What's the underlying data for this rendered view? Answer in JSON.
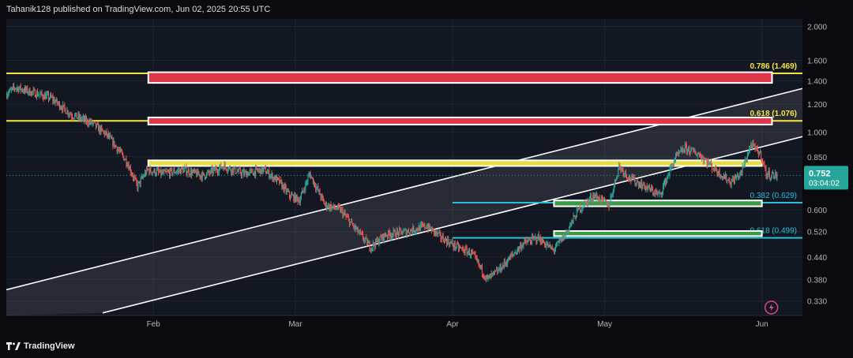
{
  "header": {
    "publisher_text": "Tahanik128 published on TradingView.com, Jun 02, 2025 20:55 UTC"
  },
  "footer": {
    "brand_label": "TradingView"
  },
  "colors": {
    "background": "#131722",
    "up": "#26a69a",
    "down": "#ef5350",
    "fib_yellow": "#f4e742",
    "fib_cyan": "#22c1d6",
    "zone_red": "#e0384b",
    "zone_yellow": "#e8dc42",
    "zone_green": "#3a9b47",
    "channel": "#ffffff",
    "price_tag": "#26a69a"
  },
  "chart_data": {
    "type": "candlestick",
    "title": "",
    "xlabel": "",
    "ylabel": "",
    "y_scale": "log",
    "ylim": [
      0.3,
      2.1
    ],
    "x_range": [
      "2025-01-03",
      "2025-06-09"
    ],
    "x_tick_labels": [
      {
        "label": "Feb",
        "date": "2025-02-01"
      },
      {
        "label": "Mar",
        "date": "2025-03-01"
      },
      {
        "label": "Apr",
        "date": "2025-04-01"
      },
      {
        "label": "May",
        "date": "2025-05-01"
      },
      {
        "label": "Jun",
        "date": "2025-06-01"
      }
    ],
    "y_tick_labels": [
      "2.000",
      "1.600",
      "1.400",
      "1.200",
      "1.000",
      "0.850",
      "0.600",
      "0.520",
      "0.440",
      "0.380",
      "0.330"
    ],
    "y_ticks": [
      2.0,
      1.6,
      1.4,
      1.2,
      1.0,
      0.85,
      0.6,
      0.52,
      0.44,
      0.38,
      0.33
    ],
    "last_price": {
      "value": 0.752,
      "label": "0.752",
      "countdown": "03:04:02"
    },
    "price_path": [
      [
        "2025-01-03",
        1.28
      ],
      [
        "2025-01-05",
        1.34
      ],
      [
        "2025-01-08",
        1.3
      ],
      [
        "2025-01-12",
        1.25
      ],
      [
        "2025-01-16",
        1.12
      ],
      [
        "2025-01-20",
        1.06
      ],
      [
        "2025-01-23",
        0.98
      ],
      [
        "2025-01-25",
        0.9
      ],
      [
        "2025-01-27",
        0.82
      ],
      [
        "2025-01-29",
        0.7
      ],
      [
        "2025-01-31",
        0.78
      ],
      [
        "2025-02-03",
        0.76
      ],
      [
        "2025-02-07",
        0.78
      ],
      [
        "2025-02-11",
        0.75
      ],
      [
        "2025-02-15",
        0.8
      ],
      [
        "2025-02-19",
        0.76
      ],
      [
        "2025-02-23",
        0.78
      ],
      [
        "2025-02-26",
        0.72
      ],
      [
        "2025-02-28",
        0.66
      ],
      [
        "2025-03-02",
        0.64
      ],
      [
        "2025-03-04",
        0.76
      ],
      [
        "2025-03-07",
        0.62
      ],
      [
        "2025-03-10",
        0.6
      ],
      [
        "2025-03-13",
        0.53
      ],
      [
        "2025-03-16",
        0.47
      ],
      [
        "2025-03-19",
        0.51
      ],
      [
        "2025-03-23",
        0.52
      ],
      [
        "2025-03-27",
        0.54
      ],
      [
        "2025-03-30",
        0.5
      ],
      [
        "2025-04-02",
        0.47
      ],
      [
        "2025-04-05",
        0.45
      ],
      [
        "2025-04-08",
        0.38
      ],
      [
        "2025-04-10",
        0.4
      ],
      [
        "2025-04-12",
        0.43
      ],
      [
        "2025-04-15",
        0.48
      ],
      [
        "2025-04-18",
        0.5
      ],
      [
        "2025-04-21",
        0.46
      ],
      [
        "2025-04-23",
        0.5
      ],
      [
        "2025-04-26",
        0.6
      ],
      [
        "2025-04-29",
        0.66
      ],
      [
        "2025-05-02",
        0.62
      ],
      [
        "2025-05-04",
        0.8
      ],
      [
        "2025-05-06",
        0.74
      ],
      [
        "2025-05-09",
        0.7
      ],
      [
        "2025-05-12",
        0.66
      ],
      [
        "2025-05-15",
        0.84
      ],
      [
        "2025-05-17",
        0.9
      ],
      [
        "2025-05-20",
        0.86
      ],
      [
        "2025-05-23",
        0.78
      ],
      [
        "2025-05-26",
        0.72
      ],
      [
        "2025-05-28",
        0.76
      ],
      [
        "2025-05-30",
        0.92
      ],
      [
        "2025-06-01",
        0.86
      ],
      [
        "2025-06-02",
        0.76
      ],
      [
        "2025-06-04",
        0.75
      ]
    ],
    "channel": {
      "upper_line": [
        [
          "2025-01-03",
          0.355
        ],
        [
          "2025-06-09",
          1.33
        ]
      ],
      "lower_line": [
        [
          "2025-01-22",
          0.305
        ],
        [
          "2025-06-09",
          0.97
        ]
      ]
    },
    "fib_lines": [
      {
        "label": "0.786 (1.469)",
        "value": 1.469,
        "color": "yellow",
        "start": "2025-01-03"
      },
      {
        "label": "0.618 (1.076)",
        "value": 1.076,
        "color": "yellow",
        "start": "2025-01-03"
      },
      {
        "label": "0.382 (0.629)",
        "value": 0.629,
        "color": "cyan",
        "start": "2025-04-01"
      },
      {
        "label": "0.618 (0.499)",
        "value": 0.499,
        "color": "cyan",
        "start": "2025-04-01"
      }
    ],
    "zones": [
      {
        "name": "red-zone-upper",
        "color": "red",
        "start": "2025-01-31",
        "end": "2025-06-03",
        "y_top": 1.48,
        "y_bottom": 1.38
      },
      {
        "name": "red-zone-lower",
        "color": "red",
        "start": "2025-01-31",
        "end": "2025-06-03",
        "y_top": 1.1,
        "y_bottom": 1.05
      },
      {
        "name": "yellow-zone",
        "color": "yellow",
        "start": "2025-01-31",
        "end": "2025-06-01",
        "y_top": 0.83,
        "y_bottom": 0.8
      },
      {
        "name": "green-zone-upper",
        "color": "green",
        "start": "2025-04-21",
        "end": "2025-06-01",
        "y_top": 0.638,
        "y_bottom": 0.614
      },
      {
        "name": "green-zone-lower",
        "color": "green",
        "start": "2025-04-21",
        "end": "2025-06-01",
        "y_top": 0.522,
        "y_bottom": 0.505
      }
    ],
    "grid": true,
    "legend": "none"
  }
}
